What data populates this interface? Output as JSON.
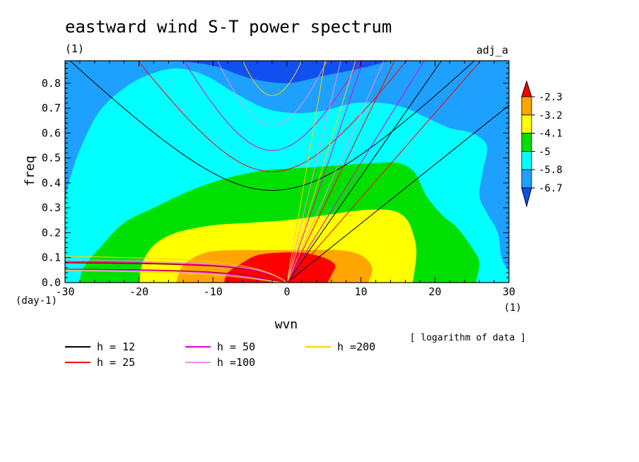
{
  "chart_data": {
    "type": "heatmap",
    "title": "eastward wind S-T power spectrum",
    "units_label": "(1)",
    "run_label": "adj_a",
    "xlabel": "wvn",
    "ylabel": "freq",
    "x_unit": "(1)",
    "y_unit": "(day-1)",
    "xlim": [
      -30,
      30
    ],
    "ylim": [
      0,
      0.89
    ],
    "x_ticks": [
      -30,
      -20,
      -10,
      0,
      10,
      20,
      30
    ],
    "x_tick_labels": [
      "-30",
      "-20",
      "-10",
      "0",
      "10",
      "20",
      "30"
    ],
    "y_ticks": [
      0,
      0.1,
      0.2,
      0.3,
      0.4,
      0.5,
      0.6,
      0.7,
      0.8
    ],
    "y_tick_labels": [
      "0.0",
      "0.1",
      "0.2",
      "0.3",
      "0.4",
      "0.5",
      "0.6",
      "0.7",
      "0.8"
    ],
    "colorbar": {
      "levels": [
        -2.3,
        -3.2,
        -4.1,
        -5,
        -5.8,
        -6.7
      ],
      "labels": [
        "-2.3",
        "-3.2",
        "-4.1",
        "-5",
        "-5.8",
        "-6.7"
      ],
      "colors": [
        "#ff0000",
        "#ffa500",
        "#ffff00",
        "#00e000",
        "#00ffff",
        "#1ea0ff",
        "#1050f0"
      ],
      "note": "[ logarithm of data ]"
    },
    "regions": [
      {
        "level": -6.7,
        "color": "#1050f0",
        "peak": [
          -2,
          0.88
        ]
      },
      {
        "level": -5.8,
        "color": "#00ffff",
        "peak": [
          -3,
          0.62
        ]
      },
      {
        "level": -5,
        "color": "#00e000",
        "peak": [
          -3,
          0.3
        ]
      },
      {
        "level": -4.1,
        "color": "#ffff00",
        "peak": [
          -1,
          0.18
        ]
      },
      {
        "level": -3.2,
        "color": "#ffa500",
        "peak": [
          -1,
          0.08
        ]
      },
      {
        "level": -2.3,
        "color": "#ff0000",
        "peak": [
          -1,
          0.05
        ]
      }
    ],
    "legend": [
      {
        "label": "h = 12",
        "color": "#000000",
        "h": 12
      },
      {
        "label": "h = 25",
        "color": "#ff0000",
        "h": 25
      },
      {
        "label": "h = 50",
        "color": "#e000e0",
        "h": 50
      },
      {
        "label": "h =100",
        "color": "#ee90ee",
        "h": 100
      },
      {
        "label": "h =200",
        "color": "#ffd000",
        "h": 200
      }
    ],
    "dispersion_curves": [
      {
        "h": 12,
        "color": "#000000",
        "kelvin_slope": 0.0237,
        "inertia_gravity_min": 0.37
      },
      {
        "h": 25,
        "color": "#ff0000",
        "kelvin_slope": 0.034,
        "inertia_gravity_min": 0.445
      },
      {
        "h": 50,
        "color": "#e000e0",
        "kelvin_slope": 0.048,
        "inertia_gravity_min": 0.53
      },
      {
        "h": 100,
        "color": "#ee90ee",
        "kelvin_slope": 0.068,
        "inertia_gravity_min": 0.63
      },
      {
        "h": 200,
        "color": "#ffd000",
        "kelvin_slope": 0.096,
        "inertia_gravity_min": 0.75
      }
    ]
  }
}
